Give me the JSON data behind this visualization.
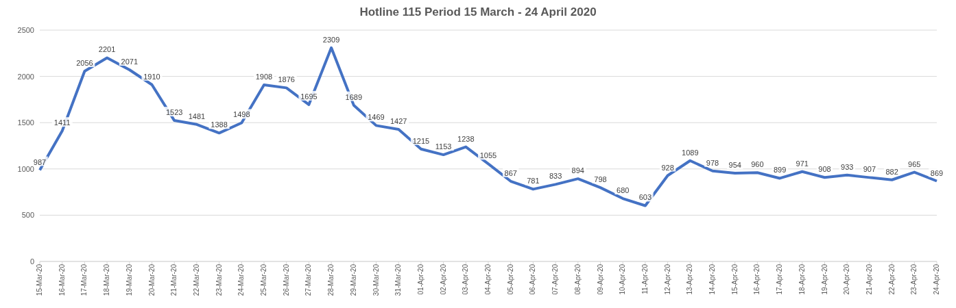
{
  "chart_data": {
    "type": "line",
    "title": "Hotline 115 Period 15 March - 24 April 2020",
    "categories": [
      "15-Mar-20",
      "16-Mar-20",
      "17-Mar-20",
      "18-Mar-20",
      "19-Mar-20",
      "20-Mar-20",
      "21-Mar-20",
      "22-Mar-20",
      "23-Mar-20",
      "24-Mar-20",
      "25-Mar-20",
      "26-Mar-20",
      "27-Mar-20",
      "28-Mar-20",
      "29-Mar-20",
      "30-Mar-20",
      "31-Mar-20",
      "01-Apr-20",
      "02-Apr-20",
      "03-Apr-20",
      "04-Apr-20",
      "05-Apr-20",
      "06-Apr-20",
      "07-Apr-20",
      "08-Apr-20",
      "09-Apr-20",
      "10-Apr-20",
      "11-Apr-20",
      "12-Apr-20",
      "13-Apr-20",
      "14-Apr-20",
      "15-Apr-20",
      "16-Apr-20",
      "17-Apr-20",
      "18-Apr-20",
      "19-Apr-20",
      "20-Apr-20",
      "21-Apr-20",
      "22-Apr-20",
      "23-Apr-20",
      "24-Apr-20"
    ],
    "series": [
      {
        "color": "#4472c4",
        "values": [
          987,
          1411,
          2056,
          2201,
          2071,
          1910,
          1523,
          1481,
          1388,
          1498,
          1908,
          1876,
          1695,
          2309,
          1689,
          1469,
          1427,
          1215,
          1153,
          1238,
          1055,
          867,
          781,
          833,
          894,
          798,
          680,
          603,
          928,
          1089,
          978,
          954,
          960,
          899,
          971,
          908,
          933,
          907,
          882,
          965,
          869
        ]
      }
    ],
    "ylim": [
      0,
      2500
    ],
    "yticks": [
      0,
      500,
      1000,
      1500,
      2000,
      2500
    ],
    "grid": "y",
    "legend": false,
    "marker": "none",
    "line_style": "solid",
    "data_labels": true
  }
}
